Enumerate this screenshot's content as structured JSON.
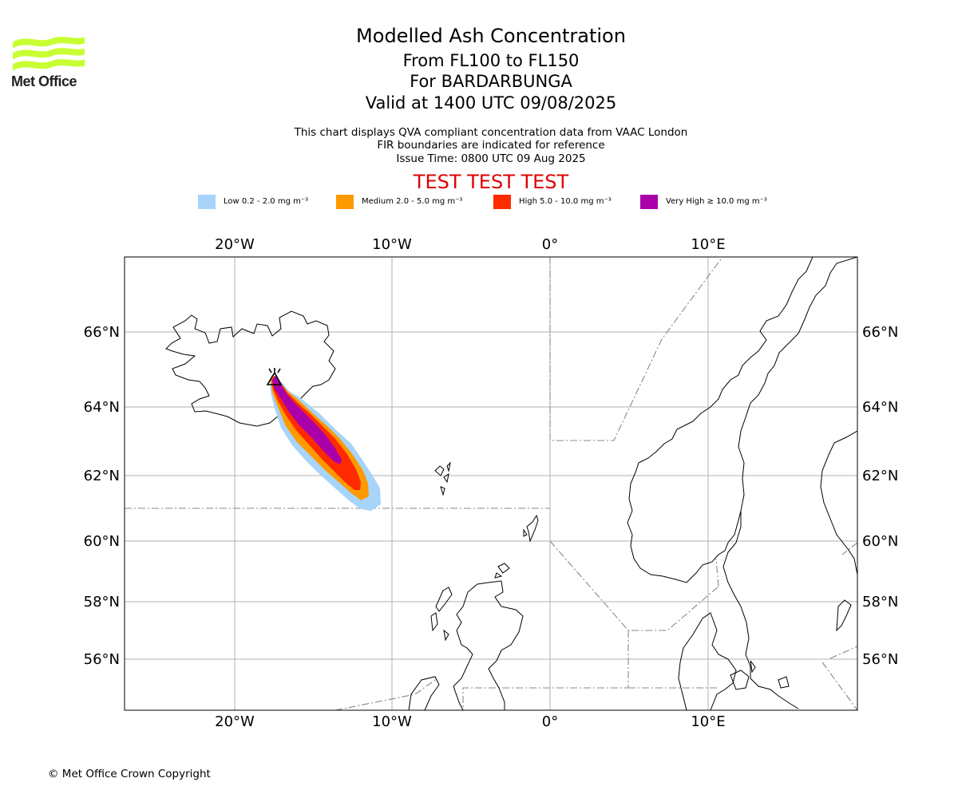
{
  "header": {
    "title": "Modelled Ash Concentration",
    "levels": "From FL100 to FL150",
    "volcano": "For BARDARBUNGA",
    "valid": "Valid at 1400 UTC 09/08/2025",
    "note1": "This chart displays QVA compliant concentration data from VAAC London",
    "note2": "FIR boundaries are indicated for reference",
    "note3": "Issue Time: 0800 UTC 09 Aug 2025",
    "test_banner": "TEST TEST TEST"
  },
  "logo": {
    "text": "Met Office",
    "color": "#c8ff32"
  },
  "legend": [
    {
      "label": "Low 0.2 - 2.0 mg m⁻³",
      "color": "#a6d4fa"
    },
    {
      "label": "Medium 2.0 - 5.0 mg m⁻³",
      "color": "#ff9900"
    },
    {
      "label": "High 5.0 - 10.0 mg m⁻³",
      "color": "#ff2a00"
    },
    {
      "label": "Very High ≥ 10.0 mg m⁻³",
      "color": "#aa00aa"
    }
  ],
  "axes": {
    "lon_labels": [
      "20°W",
      "10°W",
      "0°",
      "10°E"
    ],
    "lat_labels": [
      "66°N",
      "64°N",
      "62°N",
      "60°N",
      "58°N",
      "56°N"
    ]
  },
  "footer": {
    "copyright": "© Met Office Crown Copyright"
  }
}
